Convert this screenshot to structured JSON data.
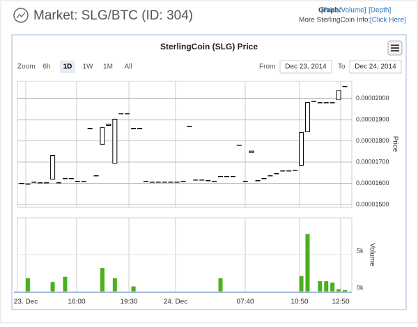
{
  "header": {
    "title": "Market: SLG/BTC (ID: 304)",
    "graph_label": "Graph:",
    "graph_links": [
      "[Price/Volume]",
      "[Depth]"
    ],
    "info_label": "More SterlingCoin Info:",
    "info_link": "[Click Here]"
  },
  "chart_data": {
    "type": "candlestick",
    "title": "SterlingCoin (SLG) Price",
    "zoom_label": "Zoom",
    "zoom_buttons": [
      "6h",
      "1D",
      "1W",
      "1M",
      "All"
    ],
    "zoom_selected": 1,
    "from_label": "From",
    "from_date": "Dec 23, 2014",
    "to_label": "To",
    "to_date": "Dec 24, 2014",
    "xticks": [
      "23. Dec",
      "16:00",
      "19:30",
      "24. Dec",
      "07:40",
      "10:50",
      "12:50"
    ],
    "open": [
      1.6e-05,
      1.597e-05,
      1.606e-05,
      1.603e-05,
      1.603e-05,
      1.62e-05,
      1.603e-05,
      1.623e-05,
      1.623e-05,
      1.61e-05,
      1.61e-05,
      1.859e-05,
      1.636e-05,
      1.862e-05,
      1.879e-05,
      1.695e-05,
      1.928e-05,
      1.928e-05,
      1.859e-05,
      1.859e-05,
      1.61e-05,
      1.606e-05,
      1.606e-05,
      1.606e-05,
      1.606e-05,
      1.606e-05,
      1.61e-05,
      1.869e-05,
      1.616e-05,
      1.616e-05,
      1.613e-05,
      1.61e-05,
      1.633e-05,
      1.633e-05,
      1.633e-05,
      1.78e-05,
      1.61e-05,
      1.752e-05,
      1.613e-05,
      1.623e-05,
      1.636e-05,
      1.646e-05,
      1.659e-05,
      1.659e-05,
      1.662e-05,
      1.685e-05,
      1.843e-05,
      1.987e-05,
      1.98e-05,
      1.98e-05,
      1.98e-05,
      1.994e-05,
      2.056e-05
    ],
    "close": [
      1.6e-05,
      1.597e-05,
      1.606e-05,
      1.603e-05,
      1.603e-05,
      1.731e-05,
      1.603e-05,
      1.623e-05,
      1.623e-05,
      1.61e-05,
      1.61e-05,
      1.859e-05,
      1.636e-05,
      1.784e-05,
      1.872e-05,
      1.902e-05,
      1.928e-05,
      1.928e-05,
      1.859e-05,
      1.859e-05,
      1.61e-05,
      1.606e-05,
      1.606e-05,
      1.606e-05,
      1.606e-05,
      1.606e-05,
      1.61e-05,
      1.869e-05,
      1.616e-05,
      1.616e-05,
      1.613e-05,
      1.61e-05,
      1.633e-05,
      1.633e-05,
      1.633e-05,
      1.78e-05,
      1.61e-05,
      1.745e-05,
      1.613e-05,
      1.623e-05,
      1.636e-05,
      1.646e-05,
      1.659e-05,
      1.659e-05,
      1.662e-05,
      1.839e-05,
      1.98e-05,
      1.987e-05,
      1.98e-05,
      1.98e-05,
      1.98e-05,
      2.036e-05,
      2.056e-05
    ],
    "volume": [
      0,
      1800,
      0,
      0,
      0,
      1300,
      0,
      2000,
      0,
      0,
      0,
      0,
      0,
      3200,
      0,
      1800,
      0,
      0,
      700,
      0,
      0,
      0,
      0,
      0,
      0,
      0,
      0,
      0,
      0,
      0,
      0,
      0,
      1800,
      0,
      0,
      0,
      0,
      0,
      0,
      0,
      0,
      0,
      0,
      0,
      0,
      2100,
      7800,
      0,
      1400,
      1400,
      1200,
      300,
      200
    ],
    "ylabel": "Price",
    "ylim": [
      1.487e-05,
      2.08e-05
    ],
    "yticks": [
      {
        "value": 1.5e-05,
        "label": "0.00001500"
      },
      {
        "value": 1.6e-05,
        "label": "0.00001600"
      },
      {
        "value": 1.7e-05,
        "label": "0.00001700"
      },
      {
        "value": 1.8e-05,
        "label": "0.00001800"
      },
      {
        "value": 1.9e-05,
        "label": "0.00001900"
      },
      {
        "value": 2e-05,
        "label": "0.00002000"
      }
    ],
    "y2label": "Volume",
    "y2lim": [
      0,
      10000
    ],
    "y2ticks": [
      {
        "value": 0,
        "label": "0k"
      },
      {
        "value": 5000,
        "label": "5k"
      }
    ],
    "color": "#ffffff",
    "volume_color": "#4caf1f",
    "grid": true
  }
}
